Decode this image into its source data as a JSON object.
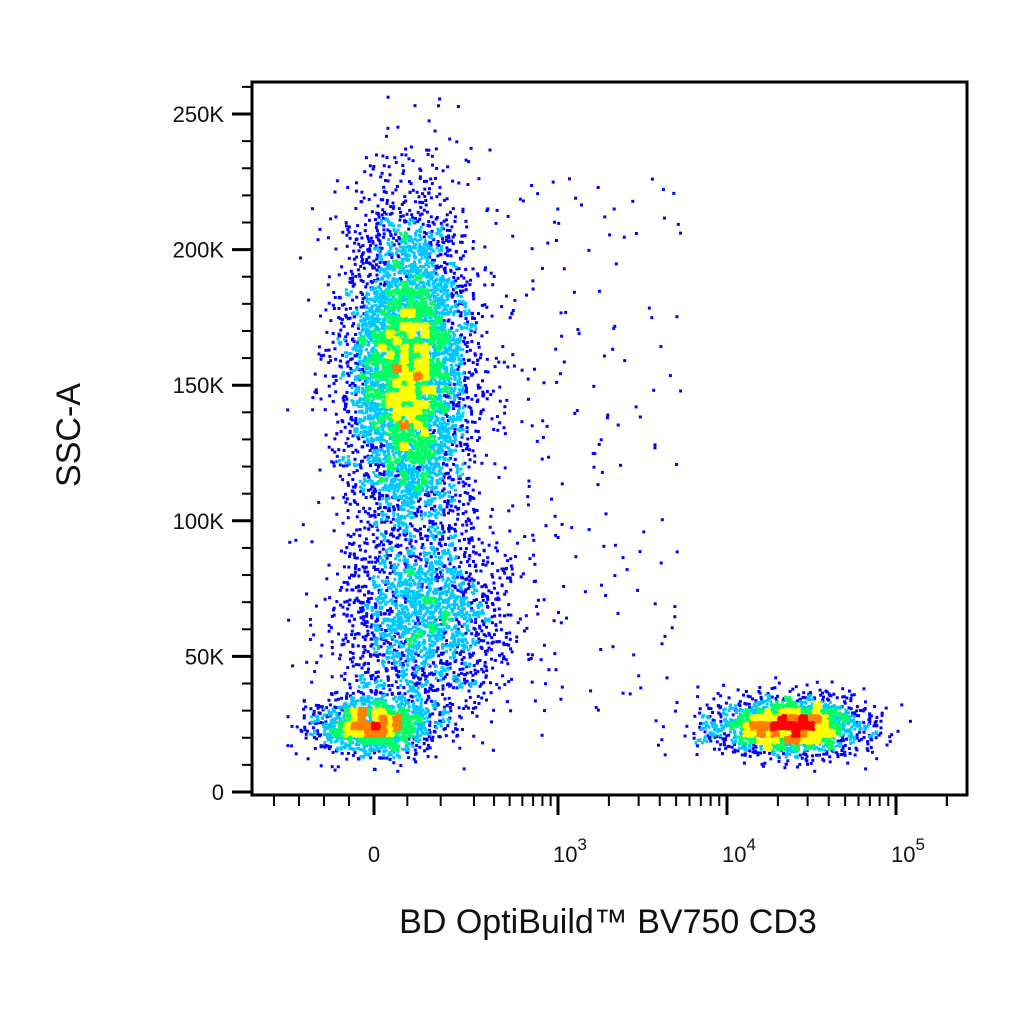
{
  "chart_data": {
    "type": "scatter",
    "style": "density-colored flow cytometry dot plot",
    "xlabel": "BD OptiBuild™ BV750 CD3",
    "ylabel": "SSC-A",
    "x_scale": "biexponential",
    "x_range": [
      -200,
      200000
    ],
    "y_range": [
      0,
      262144
    ],
    "x_ticks": [
      {
        "label": "0",
        "value": 0
      },
      {
        "label": "10",
        "exp": "3",
        "value": 1000
      },
      {
        "label": "10",
        "exp": "4",
        "value": 10000
      },
      {
        "label": "10",
        "exp": "5",
        "value": 100000
      }
    ],
    "y_ticks": [
      {
        "label": "0",
        "value": 0
      },
      {
        "label": "50K",
        "value": 50000
      },
      {
        "label": "100K",
        "value": 100000
      },
      {
        "label": "150K",
        "value": 150000
      },
      {
        "label": "200K",
        "value": 200000
      },
      {
        "label": "250K",
        "value": 250000
      }
    ],
    "grid": false,
    "color_scale": [
      "#0000ff",
      "#00c8ff",
      "#00ff64",
      "#ffff00",
      "#ff8000",
      "#ff0000"
    ],
    "populations": [
      {
        "name": "",
        "x_center": 100,
        "x_spread": 80,
        "y_center": 155000,
        "y_spread": 38000,
        "density": "high"
      },
      {
        "name": "",
        "x_center": 150,
        "x_spread": 120,
        "y_center": 65000,
        "y_spread": 22000,
        "density": "low"
      },
      {
        "name": "",
        "x_center": 0,
        "x_spread": 60,
        "y_center": 25000,
        "y_spread": 7000,
        "density": "medium"
      },
      {
        "name": "",
        "x_center": 23000,
        "x_spread": 9000,
        "y_center": 25000,
        "y_spread": 6500,
        "density": "high"
      }
    ]
  }
}
